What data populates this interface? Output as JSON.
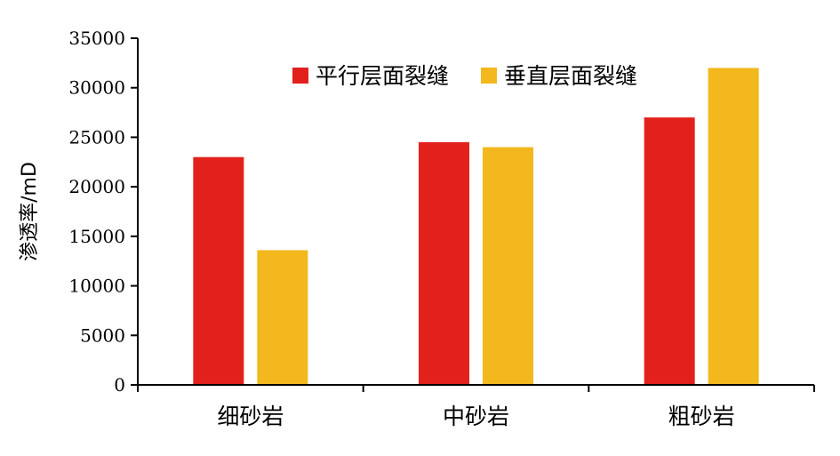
{
  "chart_data": {
    "type": "bar",
    "title": "",
    "xlabel": "",
    "ylabel": "渗透率/mD",
    "categories": [
      "细砂岩",
      "中砂岩",
      "粗砂岩"
    ],
    "series": [
      {
        "name": "平行层面裂缝",
        "color": "#e3211c",
        "values": [
          23000,
          24500,
          27000
        ]
      },
      {
        "name": "垂直层面裂缝",
        "color": "#f2b81e",
        "values": [
          13600,
          24000,
          32000
        ]
      }
    ],
    "ylim": [
      0,
      35000
    ],
    "yticks": [
      0,
      5000,
      10000,
      15000,
      20000,
      25000,
      30000,
      35000
    ],
    "grid": false,
    "legend_position": "top-right"
  }
}
